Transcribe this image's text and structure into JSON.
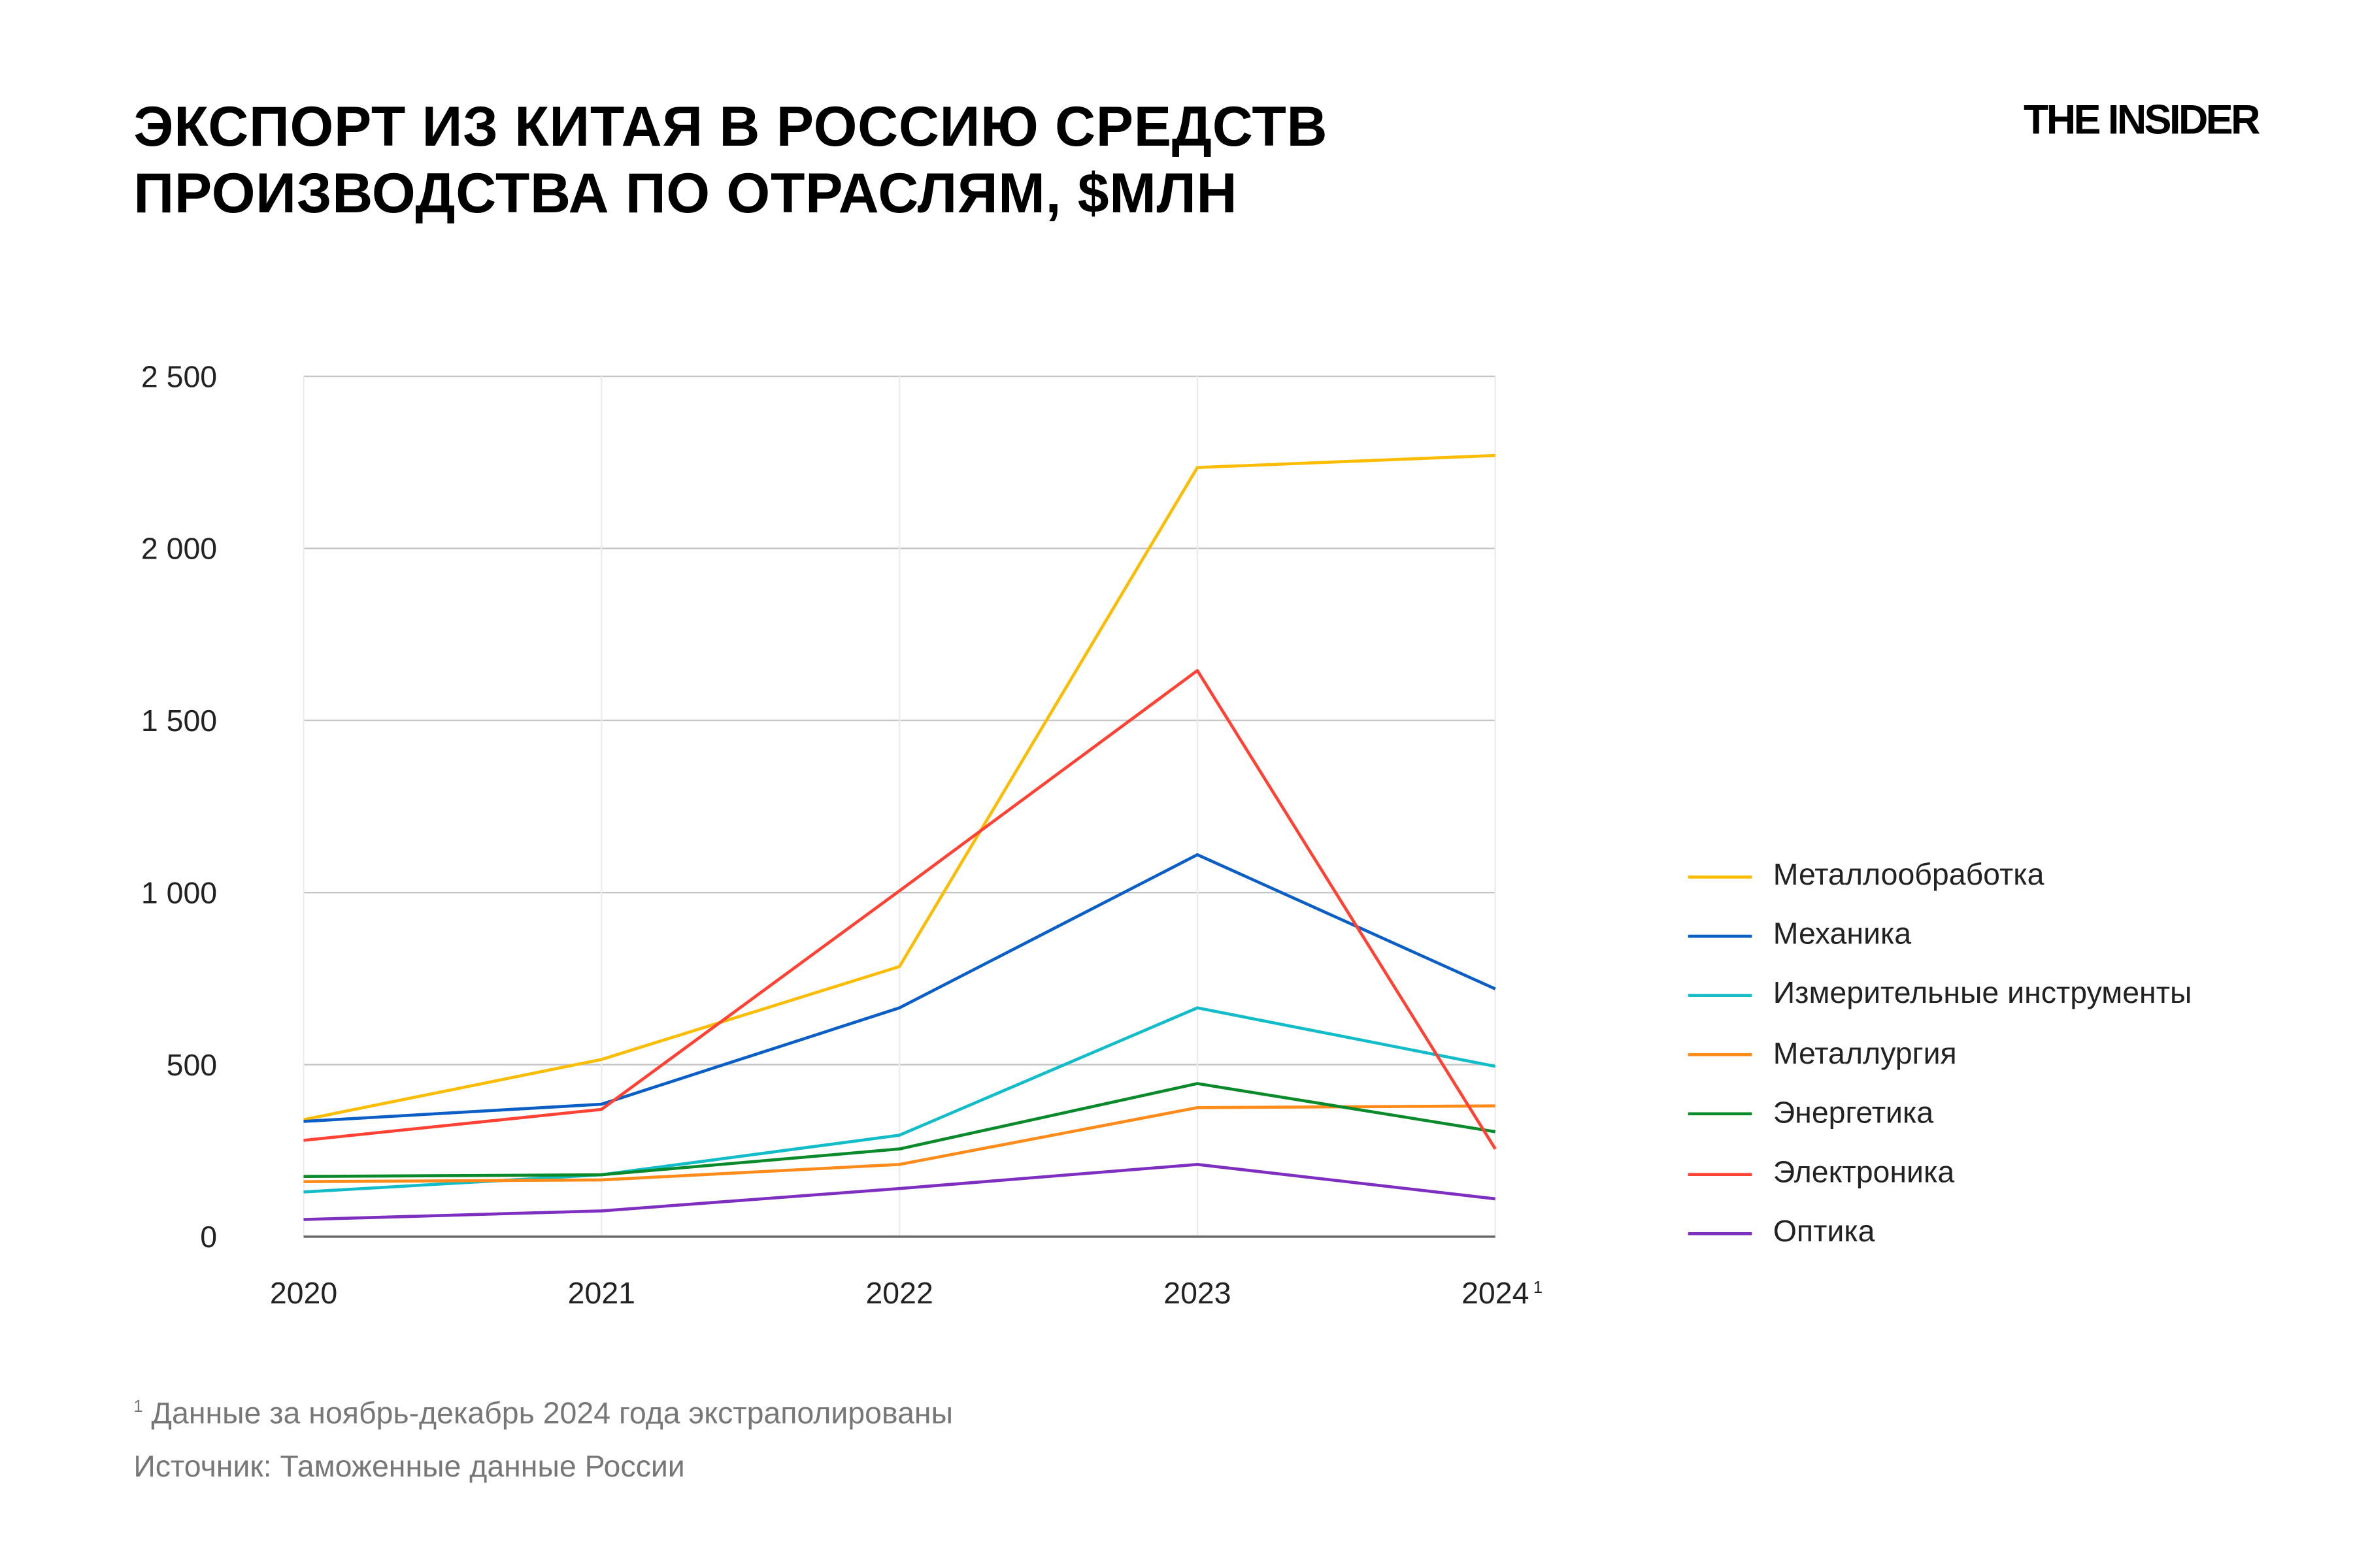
{
  "header": {
    "title_line1": "ЭКСПОРТ ИЗ КИТАЯ В РОССИЮ СРЕДСТВ",
    "title_line2": "ПРОИЗВОДСТВА ПО ОТРАСЛЯМ, $МЛН",
    "logo": "THE INSIDER"
  },
  "footer": {
    "footnote_mark": "1",
    "footnote": "Данные за ноябрь-декабрь 2024 года экстраполированы",
    "source": "Источник: Таможенные данные России"
  },
  "chart_data": {
    "type": "line",
    "title": "ЭКСПОРТ ИЗ КИТАЯ В РОССИЮ СРЕДСТВ ПРОИЗВОДСТВА ПО ОТРАСЛЯМ, $МЛН",
    "categories": [
      "2020",
      "2021",
      "2022",
      "2023",
      "2024"
    ],
    "category_superscripts": [
      "",
      "",
      "",
      "",
      "1"
    ],
    "ylim": [
      0,
      2500
    ],
    "yticks": [
      0,
      500,
      1000,
      1500,
      2000,
      2500
    ],
    "ytick_labels": [
      "0",
      "500",
      "1 000",
      "1 500",
      "2 000",
      "2 500"
    ],
    "grid": true,
    "legend_position": "right",
    "series": [
      {
        "name": "Металлообработка",
        "color": "#FBBC04",
        "values": [
          340,
          515,
          785,
          2235,
          2270
        ]
      },
      {
        "name": "Механика",
        "color": "#0B5FC4",
        "values": [
          335,
          385,
          665,
          1110,
          720
        ]
      },
      {
        "name": "Измерительные инструменты",
        "color": "#12BCC9",
        "values": [
          130,
          180,
          295,
          665,
          495
        ]
      },
      {
        "name": "Металлургия",
        "color": "#FF8C1A",
        "values": [
          160,
          165,
          210,
          375,
          380
        ]
      },
      {
        "name": "Энергетика",
        "color": "#0A8A2A",
        "values": [
          175,
          180,
          255,
          445,
          305
        ]
      },
      {
        "name": "Электроника",
        "color": "#FF4233",
        "values": [
          280,
          370,
          1005,
          1645,
          255
        ]
      },
      {
        "name": "Оптика",
        "color": "#7E2FC0",
        "values": [
          50,
          75,
          140,
          210,
          110
        ]
      }
    ]
  }
}
